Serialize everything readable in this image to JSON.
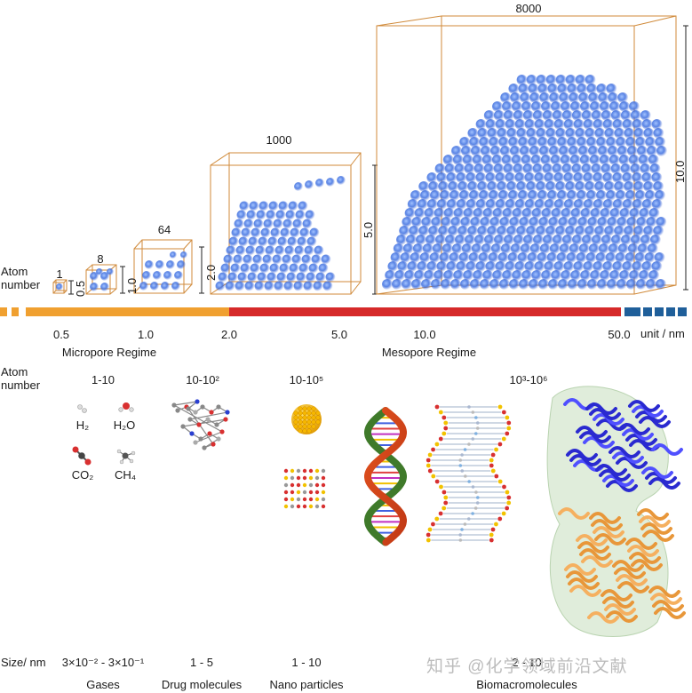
{
  "boxes": [
    {
      "atoms": "1",
      "edge": "0.5"
    },
    {
      "atoms": "8",
      "edge": "1.0"
    },
    {
      "atoms": "64",
      "edge": "2.0"
    },
    {
      "atoms": "1000",
      "edge": "5.0"
    },
    {
      "atoms": "8000",
      "edge": "10.0"
    }
  ],
  "atom_number_label": "Atom\nnumber",
  "scale": {
    "ticks": [
      "0.5",
      "1.0",
      "2.0",
      "5.0",
      "10.0",
      "50.0"
    ],
    "unit": "unit / nm",
    "regimes": [
      "Micropore Regime",
      "Mesopore Regime"
    ],
    "colors": {
      "micropore": "#f0a030",
      "mesopore": "#d62a2a",
      "beyond": "#1f5f9a"
    }
  },
  "molecules": {
    "atom_number_label": "Atom\nnumber",
    "ranges": [
      "1-10",
      "10-10²",
      "10-10⁵",
      "10³-10⁶"
    ],
    "gases": [
      "H₂",
      "H₂O",
      "CO₂",
      "CH₄"
    ]
  },
  "size_row": {
    "label": "Size/ nm",
    "values": [
      "3×10⁻² - 3×10⁻¹",
      "1 - 5",
      "1 - 10",
      "2 - 10"
    ],
    "categories": [
      "Gases",
      "Drug molecules",
      "Nano particles",
      "Biomacromolecules"
    ]
  },
  "watermark": "知乎 @化学领域前沿文献"
}
